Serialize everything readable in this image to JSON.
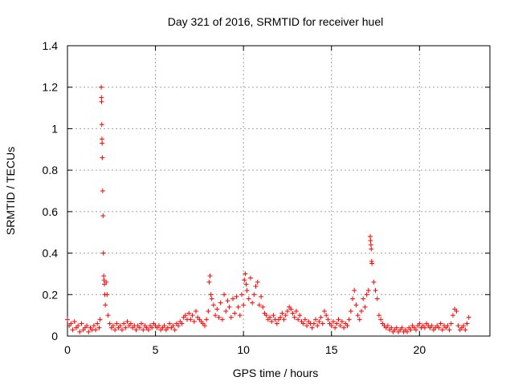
{
  "chart_data": {
    "type": "scatter",
    "title": "Day 321 of 2016, SRMTID for receiver huel",
    "xlabel": "GPS time / hours",
    "ylabel": "SRMTID / TECUs",
    "xlim": [
      0,
      24
    ],
    "ylim": [
      0,
      1.4
    ],
    "xticks": [
      0,
      5,
      10,
      15,
      20
    ],
    "yticks": [
      0,
      0.2,
      0.4,
      0.6,
      0.8,
      1,
      1.2,
      1.4
    ],
    "xtick_labels": [
      "0",
      "5",
      "10",
      "15",
      "20"
    ],
    "ytick_labels": [
      "0",
      "0.2",
      "0.4",
      "0.6",
      "0.8",
      "1",
      "1.2",
      "1.4"
    ],
    "grid": true,
    "marker": "+",
    "color": "#ff0000",
    "series": [
      {
        "name": "SRMTID",
        "points": [
          [
            0.0,
            0.08
          ],
          [
            0.1,
            0.05
          ],
          [
            0.2,
            0.06
          ],
          [
            0.3,
            0.03
          ],
          [
            0.4,
            0.07
          ],
          [
            0.5,
            0.04
          ],
          [
            0.6,
            0.05
          ],
          [
            0.7,
            0.02
          ],
          [
            0.8,
            0.06
          ],
          [
            0.9,
            0.03
          ],
          [
            1.0,
            0.04
          ],
          [
            1.1,
            0.05
          ],
          [
            1.2,
            0.02
          ],
          [
            1.3,
            0.04
          ],
          [
            1.4,
            0.03
          ],
          [
            1.5,
            0.05
          ],
          [
            1.6,
            0.03
          ],
          [
            1.7,
            0.06
          ],
          [
            1.8,
            0.04
          ],
          [
            1.85,
            0.08
          ],
          [
            1.92,
            1.2
          ],
          [
            1.93,
            1.15
          ],
          [
            1.94,
            1.13
          ],
          [
            1.95,
            1.02
          ],
          [
            1.96,
            0.95
          ],
          [
            1.97,
            0.93
          ],
          [
            1.98,
            0.86
          ],
          [
            2.0,
            0.7
          ],
          [
            2.02,
            0.58
          ],
          [
            2.04,
            0.4
          ],
          [
            2.06,
            0.29
          ],
          [
            2.08,
            0.27
          ],
          [
            2.1,
            0.25
          ],
          [
            2.12,
            0.2
          ],
          [
            2.15,
            0.15
          ],
          [
            2.2,
            0.26
          ],
          [
            2.25,
            0.2
          ],
          [
            2.3,
            0.1
          ],
          [
            2.4,
            0.06
          ],
          [
            2.5,
            0.04
          ],
          [
            2.6,
            0.05
          ],
          [
            2.7,
            0.03
          ],
          [
            2.8,
            0.06
          ],
          [
            2.9,
            0.04
          ],
          [
            3.0,
            0.05
          ],
          [
            3.1,
            0.03
          ],
          [
            3.2,
            0.06
          ],
          [
            3.3,
            0.04
          ],
          [
            3.4,
            0.07
          ],
          [
            3.5,
            0.05
          ],
          [
            3.6,
            0.06
          ],
          [
            3.7,
            0.04
          ],
          [
            3.8,
            0.05
          ],
          [
            3.9,
            0.03
          ],
          [
            4.0,
            0.05
          ],
          [
            4.1,
            0.04
          ],
          [
            4.2,
            0.06
          ],
          [
            4.3,
            0.03
          ],
          [
            4.4,
            0.05
          ],
          [
            4.5,
            0.04
          ],
          [
            4.6,
            0.03
          ],
          [
            4.7,
            0.05
          ],
          [
            4.8,
            0.04
          ],
          [
            4.9,
            0.06
          ],
          [
            5.0,
            0.05
          ],
          [
            5.1,
            0.04
          ],
          [
            5.2,
            0.05
          ],
          [
            5.3,
            0.03
          ],
          [
            5.4,
            0.04
          ],
          [
            5.5,
            0.05
          ],
          [
            5.6,
            0.03
          ],
          [
            5.7,
            0.04
          ],
          [
            5.8,
            0.06
          ],
          [
            5.9,
            0.04
          ],
          [
            6.0,
            0.05
          ],
          [
            6.1,
            0.03
          ],
          [
            6.2,
            0.06
          ],
          [
            6.3,
            0.05
          ],
          [
            6.4,
            0.07
          ],
          [
            6.5,
            0.06
          ],
          [
            6.6,
            0.09
          ],
          [
            6.7,
            0.1
          ],
          [
            6.8,
            0.08
          ],
          [
            6.9,
            0.11
          ],
          [
            7.0,
            0.08
          ],
          [
            7.1,
            0.1
          ],
          [
            7.2,
            0.07
          ],
          [
            7.3,
            0.12
          ],
          [
            7.4,
            0.09
          ],
          [
            7.5,
            0.08
          ],
          [
            7.6,
            0.07
          ],
          [
            7.7,
            0.06
          ],
          [
            7.8,
            0.05
          ],
          [
            7.9,
            0.08
          ],
          [
            8.0,
            0.12
          ],
          [
            8.05,
            0.26
          ],
          [
            8.1,
            0.29
          ],
          [
            8.15,
            0.2
          ],
          [
            8.2,
            0.18
          ],
          [
            8.3,
            0.15
          ],
          [
            8.4,
            0.1
          ],
          [
            8.5,
            0.13
          ],
          [
            8.6,
            0.09
          ],
          [
            8.7,
            0.16
          ],
          [
            8.8,
            0.08
          ],
          [
            8.9,
            0.2
          ],
          [
            9.0,
            0.12
          ],
          [
            9.1,
            0.17
          ],
          [
            9.2,
            0.14
          ],
          [
            9.3,
            0.09
          ],
          [
            9.4,
            0.18
          ],
          [
            9.5,
            0.11
          ],
          [
            9.6,
            0.19
          ],
          [
            9.7,
            0.14
          ],
          [
            9.8,
            0.1
          ],
          [
            9.9,
            0.2
          ],
          [
            10.0,
            0.15
          ],
          [
            10.05,
            0.27
          ],
          [
            10.1,
            0.3
          ],
          [
            10.15,
            0.25
          ],
          [
            10.2,
            0.22
          ],
          [
            10.3,
            0.18
          ],
          [
            10.4,
            0.28
          ],
          [
            10.5,
            0.16
          ],
          [
            10.6,
            0.2
          ],
          [
            10.7,
            0.24
          ],
          [
            10.8,
            0.26
          ],
          [
            10.9,
            0.15
          ],
          [
            11.0,
            0.19
          ],
          [
            11.1,
            0.14
          ],
          [
            11.2,
            0.11
          ],
          [
            11.3,
            0.1
          ],
          [
            11.4,
            0.08
          ],
          [
            11.5,
            0.09
          ],
          [
            11.6,
            0.07
          ],
          [
            11.7,
            0.1
          ],
          [
            11.8,
            0.08
          ],
          [
            11.9,
            0.06
          ],
          [
            12.0,
            0.08
          ],
          [
            12.1,
            0.09
          ],
          [
            12.2,
            0.11
          ],
          [
            12.3,
            0.08
          ],
          [
            12.4,
            0.1
          ],
          [
            12.5,
            0.12
          ],
          [
            12.6,
            0.14
          ],
          [
            12.7,
            0.13
          ],
          [
            12.8,
            0.11
          ],
          [
            12.9,
            0.09
          ],
          [
            13.0,
            0.12
          ],
          [
            13.1,
            0.08
          ],
          [
            13.2,
            0.1
          ],
          [
            13.3,
            0.07
          ],
          [
            13.4,
            0.06
          ],
          [
            13.5,
            0.08
          ],
          [
            13.6,
            0.05
          ],
          [
            13.7,
            0.07
          ],
          [
            13.8,
            0.06
          ],
          [
            13.9,
            0.04
          ],
          [
            14.0,
            0.06
          ],
          [
            14.1,
            0.08
          ],
          [
            14.2,
            0.05
          ],
          [
            14.3,
            0.07
          ],
          [
            14.4,
            0.09
          ],
          [
            14.5,
            0.06
          ],
          [
            14.6,
            0.12
          ],
          [
            14.7,
            0.1
          ],
          [
            14.8,
            0.08
          ],
          [
            14.9,
            0.06
          ],
          [
            15.0,
            0.05
          ],
          [
            15.1,
            0.07
          ],
          [
            15.2,
            0.04
          ],
          [
            15.3,
            0.06
          ],
          [
            15.4,
            0.08
          ],
          [
            15.5,
            0.05
          ],
          [
            15.6,
            0.07
          ],
          [
            15.7,
            0.04
          ],
          [
            15.8,
            0.06
          ],
          [
            15.9,
            0.05
          ],
          [
            16.0,
            0.08
          ],
          [
            16.1,
            0.12
          ],
          [
            16.2,
            0.18
          ],
          [
            16.3,
            0.22
          ],
          [
            16.4,
            0.15
          ],
          [
            16.5,
            0.1
          ],
          [
            16.6,
            0.08
          ],
          [
            16.7,
            0.12
          ],
          [
            16.8,
            0.18
          ],
          [
            16.9,
            0.14
          ],
          [
            17.0,
            0.2
          ],
          [
            17.1,
            0.22
          ],
          [
            17.2,
            0.48
          ],
          [
            17.22,
            0.46
          ],
          [
            17.24,
            0.44
          ],
          [
            17.26,
            0.42
          ],
          [
            17.28,
            0.36
          ],
          [
            17.3,
            0.35
          ],
          [
            17.4,
            0.26
          ],
          [
            17.5,
            0.22
          ],
          [
            17.6,
            0.18
          ],
          [
            17.7,
            0.1
          ],
          [
            17.8,
            0.08
          ],
          [
            17.9,
            0.06
          ],
          [
            18.0,
            0.05
          ],
          [
            18.1,
            0.04
          ],
          [
            18.2,
            0.05
          ],
          [
            18.3,
            0.03
          ],
          [
            18.4,
            0.04
          ],
          [
            18.5,
            0.02
          ],
          [
            18.6,
            0.03
          ],
          [
            18.7,
            0.04
          ],
          [
            18.8,
            0.02
          ],
          [
            18.9,
            0.03
          ],
          [
            19.0,
            0.04
          ],
          [
            19.1,
            0.02
          ],
          [
            19.2,
            0.03
          ],
          [
            19.3,
            0.02
          ],
          [
            19.4,
            0.04
          ],
          [
            19.5,
            0.03
          ],
          [
            19.6,
            0.05
          ],
          [
            19.7,
            0.04
          ],
          [
            19.8,
            0.03
          ],
          [
            19.9,
            0.05
          ],
          [
            20.0,
            0.06
          ],
          [
            20.1,
            0.04
          ],
          [
            20.2,
            0.05
          ],
          [
            20.3,
            0.04
          ],
          [
            20.4,
            0.06
          ],
          [
            20.5,
            0.05
          ],
          [
            20.6,
            0.04
          ],
          [
            20.7,
            0.05
          ],
          [
            20.8,
            0.03
          ],
          [
            20.9,
            0.04
          ],
          [
            21.0,
            0.05
          ],
          [
            21.1,
            0.04
          ],
          [
            21.2,
            0.06
          ],
          [
            21.3,
            0.03
          ],
          [
            21.4,
            0.05
          ],
          [
            21.5,
            0.04
          ],
          [
            21.6,
            0.05
          ],
          [
            21.7,
            0.03
          ],
          [
            21.8,
            0.06
          ],
          [
            21.9,
            0.1
          ],
          [
            22.0,
            0.13
          ],
          [
            22.1,
            0.12
          ],
          [
            22.2,
            0.05
          ],
          [
            22.3,
            0.03
          ],
          [
            22.4,
            0.04
          ],
          [
            22.5,
            0.05
          ],
          [
            22.6,
            0.03
          ],
          [
            22.7,
            0.06
          ],
          [
            22.8,
            0.09
          ]
        ]
      }
    ]
  }
}
